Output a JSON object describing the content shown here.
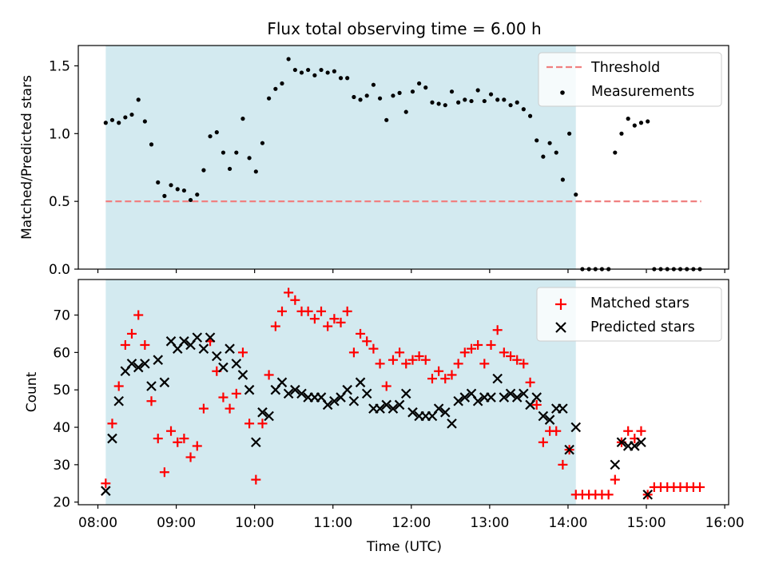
{
  "chart_data": [
    {
      "type": "scatter",
      "title": "Flux total observing time = 6.00 h",
      "xlabel": "",
      "ylabel": "Matched/Predicted stars",
      "xlim": [
        7.75,
        16.05
      ],
      "ylim": [
        0,
        1.65
      ],
      "x_ticks": [
        8,
        9,
        10,
        11,
        12,
        13,
        14,
        15,
        16
      ],
      "x_tick_labels_shown": false,
      "y_ticks": [
        0.0,
        0.5,
        1.0,
        1.5
      ],
      "y_tick_labels": [
        "0.0",
        "0.5",
        "1.0",
        "1.5"
      ],
      "shaded_region": {
        "x_start": 8.1,
        "x_end": 14.1,
        "color": "#d3eaf0"
      },
      "legend_position": "top-right",
      "series": [
        {
          "name": "Threshold",
          "kind": "hline",
          "y": 0.5,
          "x_range": [
            8.1,
            15.7
          ],
          "color": "#f08080",
          "style": "dashed"
        },
        {
          "name": "Measurements",
          "kind": "points",
          "marker": "dot",
          "color": "#000000",
          "x": [
            8.1,
            8.183,
            8.267,
            8.35,
            8.433,
            8.517,
            8.6,
            8.683,
            8.767,
            8.85,
            8.933,
            9.017,
            9.1,
            9.183,
            9.267,
            9.35,
            9.433,
            9.517,
            9.6,
            9.683,
            9.767,
            9.85,
            9.933,
            10.017,
            10.1,
            10.183,
            10.267,
            10.35,
            10.433,
            10.517,
            10.6,
            10.683,
            10.767,
            10.85,
            10.933,
            11.017,
            11.1,
            11.183,
            11.267,
            11.35,
            11.433,
            11.517,
            11.6,
            11.683,
            11.767,
            11.85,
            11.933,
            12.017,
            12.1,
            12.183,
            12.267,
            12.35,
            12.433,
            12.517,
            12.6,
            12.683,
            12.767,
            12.85,
            12.933,
            13.017,
            13.1,
            13.183,
            13.267,
            13.35,
            13.433,
            13.517,
            13.6,
            13.683,
            13.767,
            13.85,
            13.933,
            14.017,
            14.1,
            14.183,
            14.267,
            14.35,
            14.433,
            14.517,
            14.6,
            14.683,
            14.767,
            14.85,
            14.933,
            15.017,
            15.1,
            15.183,
            15.267,
            15.35,
            15.433,
            15.517,
            15.6,
            15.683
          ],
          "y": [
            1.08,
            1.1,
            1.08,
            1.12,
            1.14,
            1.25,
            1.09,
            0.92,
            0.64,
            0.54,
            0.62,
            0.59,
            0.58,
            0.51,
            0.55,
            0.73,
            0.98,
            1.01,
            0.86,
            0.74,
            0.86,
            1.11,
            0.82,
            0.72,
            0.93,
            1.26,
            1.33,
            1.37,
            1.55,
            1.47,
            1.45,
            1.47,
            1.43,
            1.47,
            1.45,
            1.46,
            1.41,
            1.41,
            1.27,
            1.25,
            1.28,
            1.36,
            1.26,
            1.1,
            1.28,
            1.3,
            1.16,
            1.31,
            1.37,
            1.34,
            1.23,
            1.22,
            1.21,
            1.31,
            1.23,
            1.25,
            1.24,
            1.32,
            1.24,
            1.29,
            1.25,
            1.25,
            1.21,
            1.23,
            1.18,
            1.13,
            0.95,
            0.83,
            0.93,
            0.86,
            0.66,
            1.0,
            0.55,
            0.0,
            0.0,
            0.0,
            0.0,
            0.0,
            0.86,
            1.0,
            1.11,
            1.06,
            1.08,
            1.09,
            0.0,
            0.0,
            0.0,
            0.0,
            0.0,
            0.0,
            0.0,
            0.0
          ]
        }
      ]
    },
    {
      "type": "scatter",
      "title": "",
      "xlabel": "Time (UTC)",
      "ylabel": "Count",
      "xlim": [
        7.75,
        16.05
      ],
      "ylim": [
        19.3,
        79.5
      ],
      "x_ticks": [
        8,
        9,
        10,
        11,
        12,
        13,
        14,
        15,
        16
      ],
      "x_tick_labels": [
        "08:00",
        "09:00",
        "10:00",
        "11:00",
        "12:00",
        "13:00",
        "14:00",
        "15:00",
        "16:00"
      ],
      "y_ticks": [
        20,
        30,
        40,
        50,
        60,
        70
      ],
      "y_tick_labels": [
        "20",
        "30",
        "40",
        "50",
        "60",
        "70"
      ],
      "shaded_region": {
        "x_start": 8.1,
        "x_end": 14.1,
        "color": "#d3eaf0"
      },
      "legend_position": "top-right",
      "series": [
        {
          "name": "Matched stars",
          "kind": "points",
          "marker": "plus",
          "color": "#ff0000",
          "x": [
            8.1,
            8.183,
            8.267,
            8.35,
            8.433,
            8.517,
            8.6,
            8.683,
            8.767,
            8.85,
            8.933,
            9.017,
            9.1,
            9.183,
            9.267,
            9.35,
            9.433,
            9.517,
            9.6,
            9.683,
            9.767,
            9.85,
            9.933,
            10.017,
            10.1,
            10.183,
            10.267,
            10.35,
            10.433,
            10.517,
            10.6,
            10.683,
            10.767,
            10.85,
            10.933,
            11.017,
            11.1,
            11.183,
            11.267,
            11.35,
            11.433,
            11.517,
            11.6,
            11.683,
            11.767,
            11.85,
            11.933,
            12.017,
            12.1,
            12.183,
            12.267,
            12.35,
            12.433,
            12.517,
            12.6,
            12.683,
            12.767,
            12.85,
            12.933,
            13.017,
            13.1,
            13.183,
            13.267,
            13.35,
            13.433,
            13.517,
            13.6,
            13.683,
            13.767,
            13.85,
            13.933,
            14.017,
            14.1,
            14.183,
            14.267,
            14.35,
            14.433,
            14.517,
            14.6,
            14.683,
            14.767,
            14.85,
            14.933,
            15.017,
            15.1,
            15.183,
            15.267,
            15.35,
            15.433,
            15.517,
            15.6,
            15.683
          ],
          "y": [
            25,
            41,
            51,
            62,
            65,
            70,
            62,
            47,
            37,
            28,
            39,
            36,
            37,
            32,
            35,
            45,
            63,
            55,
            48,
            45,
            49,
            60,
            41,
            26,
            41,
            54,
            67,
            71,
            76,
            74,
            71,
            71,
            69,
            71,
            67,
            69,
            68,
            71,
            60,
            65,
            63,
            61,
            57,
            51,
            58,
            60,
            57,
            58,
            59,
            58,
            53,
            55,
            53,
            54,
            57,
            60,
            61,
            62,
            57,
            62,
            66,
            60,
            59,
            58,
            57,
            52,
            46,
            36,
            39,
            39,
            30,
            34,
            22,
            22,
            22,
            22,
            22,
            22,
            26,
            36,
            39,
            37,
            39,
            22,
            24,
            24,
            24,
            24,
            24,
            24,
            24,
            24
          ]
        },
        {
          "name": "Predicted stars",
          "kind": "points",
          "marker": "cross",
          "color": "#000000",
          "x": [
            8.1,
            8.183,
            8.267,
            8.35,
            8.433,
            8.517,
            8.6,
            8.683,
            8.767,
            8.85,
            8.933,
            9.017,
            9.1,
            9.183,
            9.267,
            9.35,
            9.433,
            9.517,
            9.6,
            9.683,
            9.767,
            9.85,
            9.933,
            10.017,
            10.1,
            10.183,
            10.267,
            10.35,
            10.433,
            10.517,
            10.6,
            10.683,
            10.767,
            10.85,
            10.933,
            11.017,
            11.1,
            11.183,
            11.267,
            11.35,
            11.433,
            11.517,
            11.6,
            11.683,
            11.767,
            11.85,
            11.933,
            12.017,
            12.1,
            12.183,
            12.267,
            12.35,
            12.433,
            12.517,
            12.6,
            12.683,
            12.767,
            12.85,
            12.933,
            13.017,
            13.1,
            13.183,
            13.267,
            13.35,
            13.433,
            13.517,
            13.6,
            13.683,
            13.767,
            13.85,
            13.933,
            14.017,
            14.1,
            14.6,
            14.683,
            14.767,
            14.85,
            14.933,
            15.017
          ],
          "y": [
            23,
            37,
            47,
            55,
            57,
            56,
            57,
            51,
            58,
            52,
            63,
            61,
            63,
            62,
            64,
            61,
            64,
            59,
            56,
            61,
            57,
            54,
            50,
            36,
            44,
            43,
            50,
            52,
            49,
            50,
            49,
            48,
            48,
            48,
            46,
            47,
            48,
            50,
            47,
            52,
            49,
            45,
            45,
            46,
            45,
            46,
            49,
            44,
            43,
            43,
            43,
            45,
            44,
            41,
            47,
            48,
            49,
            47,
            48,
            48,
            53,
            48,
            49,
            48,
            49,
            46,
            48,
            43,
            42,
            45,
            45,
            34,
            40,
            30,
            36,
            35,
            35,
            36,
            22
          ]
        }
      ]
    }
  ]
}
